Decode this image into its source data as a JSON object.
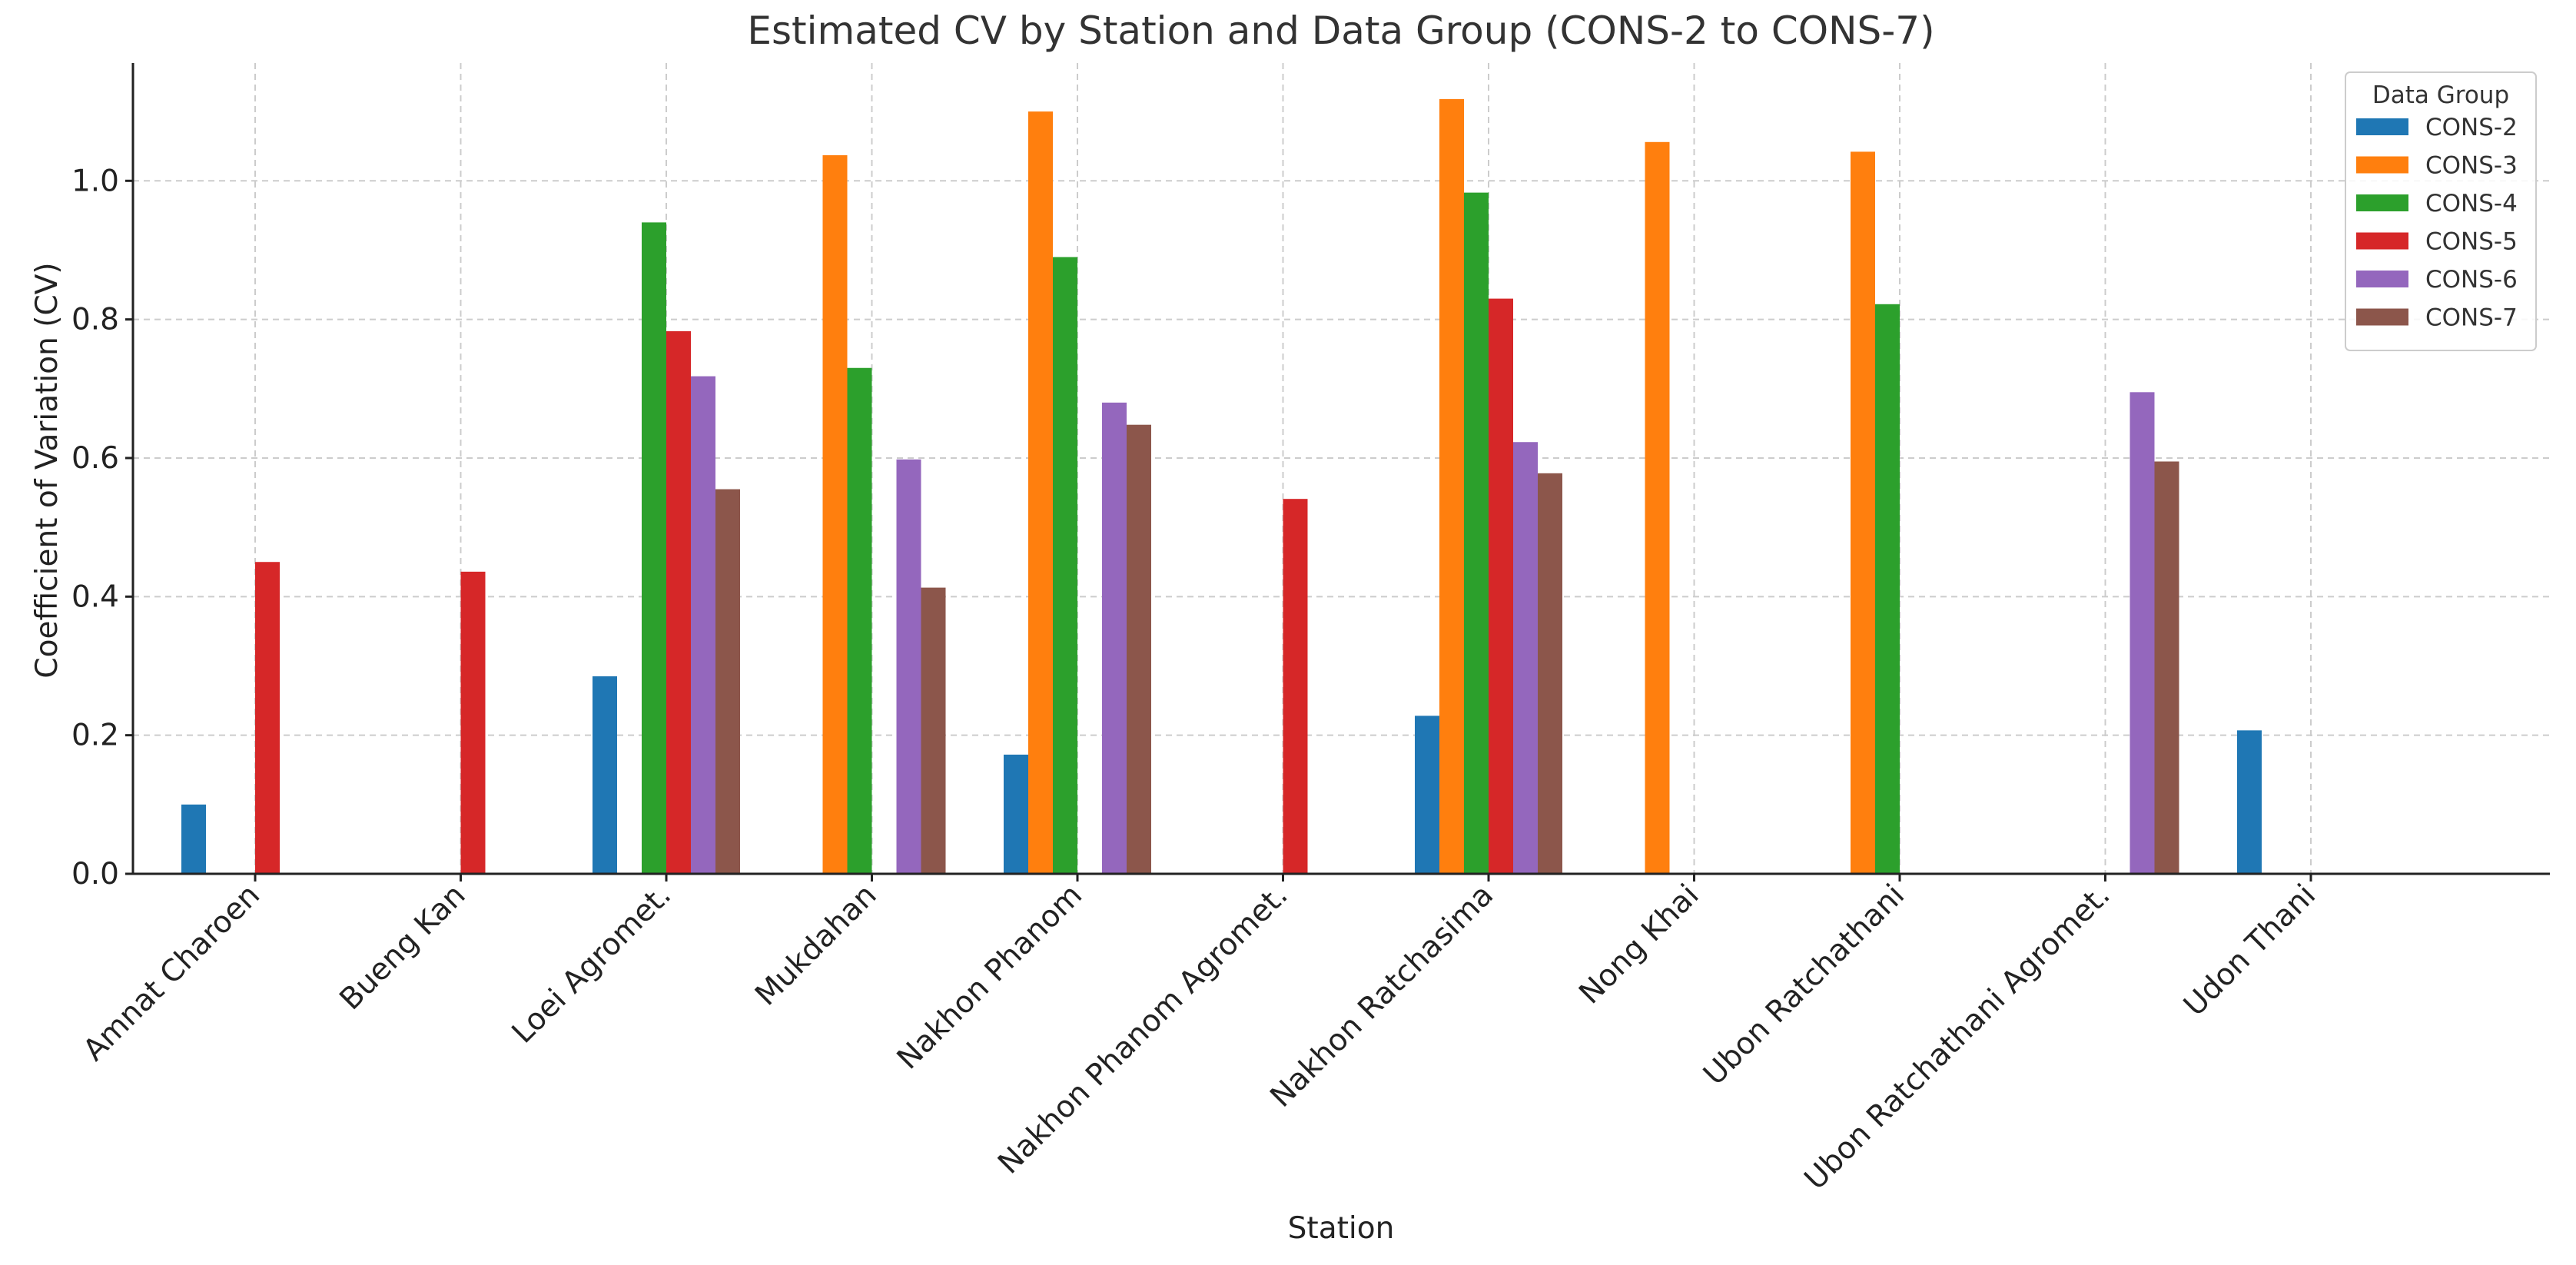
{
  "chart_data": {
    "type": "bar",
    "title": "Estimated CV by Station and Data Group (CONS-2 to CONS-7)",
    "xlabel": "Station",
    "ylabel": "Coefficient of Variation (CV)",
    "ylim": [
      0,
      1.17
    ],
    "yticks": [
      "0.0",
      "0.2",
      "0.4",
      "0.6",
      "0.8",
      "1.0"
    ],
    "grid": true,
    "legend_title": "Data Group",
    "legend_position": "top-right",
    "categories": [
      "Amnat Charoen",
      "Bueng Kan",
      "Loei Agromet.",
      "Mukdahan",
      "Nakhon Phanom",
      "Nakhon Phanom Agromet.",
      "Nakhon Ratchasima",
      "Nong Khai",
      "Ubon Ratchathani",
      "Ubon Ratchathani Agromet.",
      "Udon Thani"
    ],
    "series": [
      {
        "name": "CONS-2",
        "color": "#1f77b4",
        "values": [
          0.1,
          null,
          0.285,
          null,
          0.172,
          null,
          0.228,
          null,
          null,
          null,
          0.207
        ]
      },
      {
        "name": "CONS-3",
        "color": "#ff7f0e",
        "values": [
          null,
          null,
          null,
          1.037,
          1.1,
          null,
          1.118,
          1.056,
          1.042,
          null,
          null
        ]
      },
      {
        "name": "CONS-4",
        "color": "#2ca02c",
        "values": [
          null,
          null,
          0.94,
          0.73,
          0.89,
          null,
          0.983,
          null,
          0.822,
          null,
          null
        ]
      },
      {
        "name": "CONS-5",
        "color": "#d62728",
        "values": [
          0.45,
          0.436,
          0.783,
          null,
          null,
          0.541,
          0.83,
          null,
          null,
          null,
          null
        ]
      },
      {
        "name": "CONS-6",
        "color": "#9467bd",
        "values": [
          null,
          null,
          0.718,
          0.598,
          0.68,
          null,
          0.623,
          null,
          null,
          0.695,
          null
        ]
      },
      {
        "name": "CONS-7",
        "color": "#8c564b",
        "values": [
          null,
          null,
          0.555,
          0.413,
          0.648,
          null,
          0.578,
          null,
          null,
          0.595,
          null
        ]
      }
    ]
  }
}
